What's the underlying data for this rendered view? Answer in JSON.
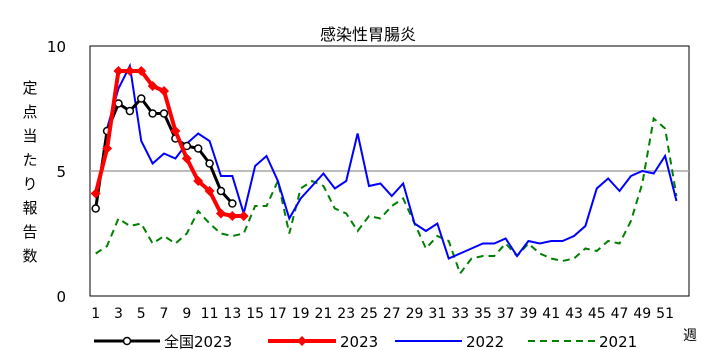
{
  "chart_data": {
    "type": "line",
    "title": "感染性胃腸炎",
    "ylabel": "定点当たり報告数",
    "xlabel": "週",
    "ylim": [
      0,
      10
    ],
    "yticks": [
      0,
      5,
      10
    ],
    "xticks": [
      1,
      3,
      5,
      7,
      9,
      11,
      13,
      15,
      17,
      19,
      21,
      23,
      25,
      27,
      29,
      31,
      33,
      35,
      37,
      39,
      41,
      43,
      45,
      47,
      49,
      51
    ],
    "reference_line": 5,
    "legend_position": "bottom",
    "series": [
      {
        "name": "全国2023",
        "color": "#000000",
        "style": "solid-open-circle",
        "x": [
          1,
          2,
          3,
          4,
          5,
          6,
          7,
          8,
          9,
          10,
          11,
          12,
          13
        ],
        "values": [
          3.5,
          6.6,
          7.7,
          7.4,
          7.9,
          7.3,
          7.3,
          6.3,
          6.0,
          5.9,
          5.3,
          4.2,
          3.7
        ]
      },
      {
        "name": "2023",
        "color": "#ff0000",
        "style": "thick-diamond",
        "x": [
          1,
          2,
          3,
          4,
          5,
          6,
          7,
          8,
          9,
          10,
          11,
          12,
          13,
          14
        ],
        "values": [
          4.1,
          5.9,
          9.0,
          9.0,
          9.0,
          8.4,
          8.2,
          6.6,
          5.5,
          4.6,
          4.2,
          3.3,
          3.2,
          3.2
        ]
      },
      {
        "name": "2022",
        "color": "#0000ff",
        "style": "solid",
        "x": [
          1,
          2,
          3,
          4,
          5,
          6,
          7,
          8,
          9,
          10,
          11,
          12,
          13,
          14,
          15,
          16,
          17,
          18,
          19,
          20,
          21,
          22,
          23,
          24,
          25,
          26,
          27,
          28,
          29,
          30,
          31,
          32,
          33,
          34,
          35,
          36,
          37,
          38,
          39,
          40,
          41,
          42,
          43,
          44,
          45,
          46,
          47,
          48,
          49,
          50,
          51,
          52
        ],
        "values": [
          3.6,
          6.7,
          8.3,
          9.2,
          6.2,
          5.3,
          5.7,
          5.5,
          6.1,
          6.5,
          6.2,
          4.8,
          4.8,
          3.3,
          5.2,
          5.6,
          4.6,
          3.1,
          3.9,
          4.4,
          4.9,
          4.3,
          4.6,
          6.5,
          4.4,
          4.5,
          4.0,
          4.5,
          2.9,
          2.6,
          2.9,
          1.5,
          1.7,
          1.9,
          2.1,
          2.1,
          2.3,
          1.6,
          2.2,
          2.1,
          2.2,
          2.2,
          2.4,
          2.8,
          4.3,
          4.7,
          4.2,
          4.8,
          5.0,
          4.9,
          5.6,
          3.8
        ]
      },
      {
        "name": "2021",
        "color": "#008000",
        "style": "dashed",
        "x": [
          1,
          2,
          3,
          4,
          5,
          6,
          7,
          8,
          9,
          10,
          11,
          12,
          13,
          14,
          15,
          16,
          17,
          18,
          19,
          20,
          21,
          22,
          23,
          24,
          25,
          26,
          27,
          28,
          29,
          30,
          31,
          32,
          33,
          34,
          35,
          36,
          37,
          38,
          39,
          40,
          41,
          42,
          43,
          44,
          45,
          46,
          47,
          48,
          49,
          50,
          51,
          52
        ],
        "values": [
          1.7,
          2.0,
          3.1,
          2.8,
          2.9,
          2.1,
          2.4,
          2.1,
          2.5,
          3.4,
          2.9,
          2.5,
          2.4,
          2.5,
          3.6,
          3.6,
          4.6,
          2.5,
          4.3,
          4.6,
          4.4,
          3.5,
          3.3,
          2.6,
          3.2,
          3.1,
          3.6,
          3.9,
          2.9,
          1.9,
          2.4,
          2.2,
          0.9,
          1.5,
          1.6,
          1.6,
          2.1,
          1.6,
          2.1,
          1.7,
          1.5,
          1.4,
          1.5,
          1.9,
          1.8,
          2.2,
          2.1,
          3.0,
          4.5,
          7.1,
          6.7,
          4.0
        ]
      }
    ]
  }
}
